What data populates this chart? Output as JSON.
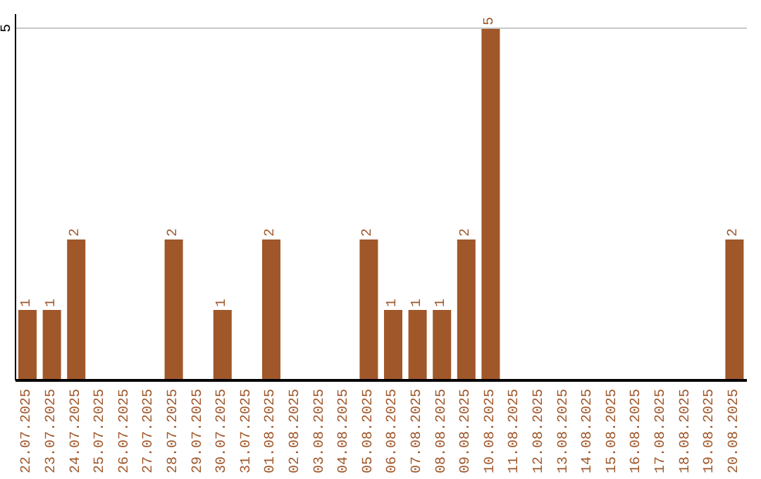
{
  "chart_data": {
    "type": "bar",
    "categories": [
      "22.07.2025",
      "23.07.2025",
      "24.07.2025",
      "25.07.2025",
      "26.07.2025",
      "27.07.2025",
      "28.07.2025",
      "29.07.2025",
      "30.07.2025",
      "31.07.2025",
      "01.08.2025",
      "02.08.2025",
      "03.08.2025",
      "04.08.2025",
      "05.08.2025",
      "06.08.2025",
      "07.08.2025",
      "08.08.2025",
      "09.08.2025",
      "10.08.2025",
      "11.08.2025",
      "12.08.2025",
      "13.08.2025",
      "14.08.2025",
      "15.08.2025",
      "16.08.2025",
      "17.08.2025",
      "18.08.2025",
      "19.08.2025",
      "20.08.2025"
    ],
    "values": [
      1,
      1,
      2,
      0,
      0,
      0,
      2,
      0,
      1,
      0,
      2,
      0,
      0,
      0,
      2,
      1,
      1,
      1,
      2,
      5,
      0,
      0,
      0,
      0,
      0,
      0,
      0,
      0,
      0,
      2
    ],
    "value_labels": [
      "1",
      "1",
      "2",
      null,
      null,
      null,
      "2",
      null,
      "1",
      null,
      "2",
      null,
      null,
      null,
      "2",
      "1",
      "1",
      "1",
      "2",
      "5",
      null,
      null,
      null,
      null,
      null,
      null,
      null,
      null,
      null,
      "2"
    ],
    "color": "#a0572a",
    "ylim": [
      0,
      5.2
    ],
    "yticks": [
      5
    ],
    "grid": "y"
  }
}
